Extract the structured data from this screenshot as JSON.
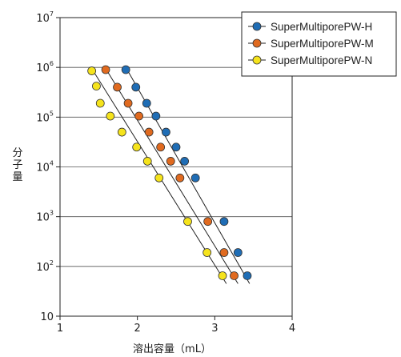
{
  "chart_data": {
    "type": "scatter",
    "xlabel": "溶出容量（mL）",
    "ylabel": "分子量",
    "xlim": [
      1,
      4
    ],
    "ylim": [
      10,
      10000000
    ],
    "y_scale": "log",
    "x_ticks": [
      "1",
      "2",
      "3",
      "4"
    ],
    "y_ticks": [
      {
        "base": "10",
        "exp": ""
      },
      {
        "base": "10",
        "exp": "2"
      },
      {
        "base": "10",
        "exp": "3"
      },
      {
        "base": "10",
        "exp": "4"
      },
      {
        "base": "10",
        "exp": "5"
      },
      {
        "base": "10",
        "exp": "6"
      },
      {
        "base": "10",
        "exp": "7"
      }
    ],
    "y_tick_values": [
      10,
      100,
      1000,
      10000,
      100000,
      1000000,
      10000000
    ],
    "grid": "horizontal",
    "legend_position": "top-right",
    "series": [
      {
        "name": "SuperMultiporePW-H",
        "color": "#1f6db5",
        "fit": [
          [
            1.85,
            1000000
          ],
          [
            3.45,
            45
          ]
        ],
        "points": [
          [
            1.85,
            900000
          ],
          [
            1.98,
            400000
          ],
          [
            2.12,
            190000
          ],
          [
            2.24,
            105000
          ],
          [
            2.37,
            50000
          ],
          [
            2.5,
            25000
          ],
          [
            2.61,
            13000
          ],
          [
            2.75,
            6000
          ],
          [
            3.12,
            800
          ],
          [
            3.3,
            190
          ],
          [
            3.42,
            65
          ]
        ]
      },
      {
        "name": "SuperMultiporePW-M",
        "color": "#e06a1f",
        "fit": [
          [
            1.58,
            1000000
          ],
          [
            3.3,
            45
          ]
        ],
        "points": [
          [
            1.59,
            900000
          ],
          [
            1.74,
            400000
          ],
          [
            1.88,
            190000
          ],
          [
            2.02,
            105000
          ],
          [
            2.15,
            50000
          ],
          [
            2.3,
            25000
          ],
          [
            2.43,
            13000
          ],
          [
            2.55,
            6000
          ],
          [
            2.91,
            800
          ],
          [
            3.12,
            190
          ],
          [
            3.25,
            65
          ]
        ]
      },
      {
        "name": "SuperMultiporePW-N",
        "color": "#f5e31c",
        "fit": [
          [
            1.4,
            1000000
          ],
          [
            3.15,
            45
          ]
        ],
        "points": [
          [
            1.41,
            850000
          ],
          [
            1.47,
            420000
          ],
          [
            1.52,
            190000
          ],
          [
            1.65,
            105000
          ],
          [
            1.8,
            50000
          ],
          [
            1.99,
            25000
          ],
          [
            2.13,
            13000
          ],
          [
            2.28,
            6000
          ],
          [
            2.65,
            800
          ],
          [
            2.9,
            190
          ],
          [
            3.1,
            65
          ]
        ]
      }
    ]
  }
}
